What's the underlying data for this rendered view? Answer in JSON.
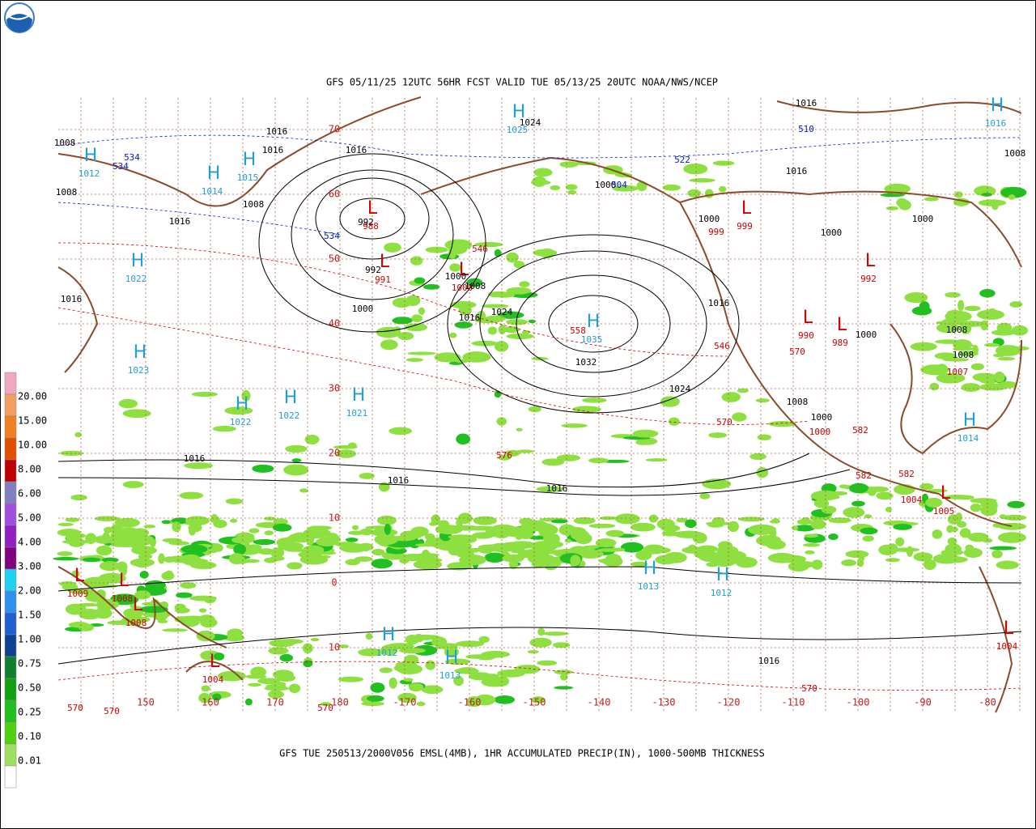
{
  "header": {
    "title": "GFS 05/11/25 12UTC 56HR FCST VALID TUE 05/13/25 20UTC NOAA/NWS/NCEP"
  },
  "footer": {
    "caption": "GFS TUE 250513/2000V056 EMSL(4MB), 1HR ACCUMULATED PRECIP(IN), 1000-500MB THICKNESS"
  },
  "legend": {
    "labels": [
      "20.00",
      "15.00",
      "10.00",
      "8.00",
      "6.00",
      "5.00",
      "4.00",
      "3.00",
      "2.00",
      "1.50",
      "1.00",
      "0.75",
      "0.50",
      "0.25",
      "0.10",
      "0.01"
    ],
    "colors": [
      "#f0a8c0",
      "#f0a060",
      "#f08020",
      "#e05000",
      "#c00000",
      "#8080c0",
      "#a050e0",
      "#9020c0",
      "#800080",
      "#20d0f0",
      "#3090f0",
      "#2060d0",
      "#104090",
      "#108030",
      "#10a010",
      "#20c020",
      "#50d010",
      "#a0e060",
      "#ffffff"
    ]
  },
  "map": {
    "lat_labels": [
      "70",
      "60",
      "50",
      "40",
      "30",
      "20",
      "10",
      "0",
      "10"
    ],
    "lon_labels": [
      "150",
      "160",
      "170",
      "180",
      "-170",
      "-160",
      "-150",
      "-140",
      "-130",
      "-120",
      "-110",
      "-100",
      "-90",
      "-80"
    ],
    "centers": [
      {
        "letter": "H",
        "value": "1012"
      },
      {
        "letter": "H",
        "value": "1014"
      },
      {
        "letter": "H",
        "value": "1015"
      },
      {
        "letter": "H",
        "value": "1025"
      },
      {
        "letter": "H",
        "value": "1022"
      },
      {
        "letter": "H",
        "value": "1023"
      },
      {
        "letter": "H",
        "value": "1035"
      },
      {
        "letter": "H",
        "value": "1022"
      },
      {
        "letter": "H",
        "value": "1022"
      },
      {
        "letter": "H",
        "value": "1021"
      },
      {
        "letter": "H",
        "value": "1014"
      },
      {
        "letter": "H",
        "value": "1013"
      },
      {
        "letter": "H",
        "value": "1012"
      },
      {
        "letter": "H",
        "value": "1012"
      },
      {
        "letter": "H",
        "value": "1013"
      },
      {
        "letter": "H",
        "value": "1016"
      },
      {
        "letter": "L",
        "value": "988"
      },
      {
        "letter": "L",
        "value": "991"
      },
      {
        "letter": "L",
        "value": "1000"
      },
      {
        "letter": "L",
        "value": "992"
      },
      {
        "letter": "L",
        "value": "989"
      },
      {
        "letter": "L",
        "value": "990"
      },
      {
        "letter": "L",
        "value": "999"
      },
      {
        "letter": "L",
        "value": "1009"
      },
      {
        "letter": "L",
        "value": "1008"
      },
      {
        "letter": "L",
        "value": "1008"
      },
      {
        "letter": "L",
        "value": "1004"
      },
      {
        "letter": "L",
        "value": "1005"
      },
      {
        "letter": "L",
        "value": "1004"
      }
    ],
    "labels": [
      {
        "text": "1016",
        "color": "black"
      },
      {
        "text": "1016",
        "color": "black"
      },
      {
        "text": "1016",
        "color": "black"
      },
      {
        "text": "1016",
        "color": "black"
      },
      {
        "text": "1008",
        "color": "black"
      },
      {
        "text": "1000",
        "color": "black"
      },
      {
        "text": "992",
        "color": "black"
      },
      {
        "text": "992",
        "color": "black"
      },
      {
        "text": "1000",
        "color": "black"
      },
      {
        "text": "1008",
        "color": "black"
      },
      {
        "text": "1016",
        "color": "black"
      },
      {
        "text": "1024",
        "color": "black"
      },
      {
        "text": "1032",
        "color": "black"
      },
      {
        "text": "1024",
        "color": "black"
      },
      {
        "text": "1016",
        "color": "black"
      },
      {
        "text": "1016",
        "color": "black"
      },
      {
        "text": "1016",
        "color": "black"
      },
      {
        "text": "1016",
        "color": "black"
      },
      {
        "text": "1016",
        "color": "black"
      },
      {
        "text": "1000",
        "color": "black"
      },
      {
        "text": "1000",
        "color": "black"
      },
      {
        "text": "1000",
        "color": "black"
      },
      {
        "text": "1000",
        "color": "black"
      },
      {
        "text": "1008",
        "color": "black"
      },
      {
        "text": "1008",
        "color": "black"
      },
      {
        "text": "1016",
        "color": "black"
      },
      {
        "text": "1016",
        "color": "black"
      },
      {
        "text": "1008",
        "color": "black"
      },
      {
        "text": "1000",
        "color": "black"
      },
      {
        "text": "1008",
        "color": "black"
      },
      {
        "text": "1024",
        "color": "black"
      },
      {
        "text": "1000",
        "color": "black"
      },
      {
        "text": "1016",
        "color": "black"
      },
      {
        "text": "1008",
        "color": "black"
      },
      {
        "text": "1008",
        "color": "black"
      },
      {
        "text": "558",
        "color": "red"
      },
      {
        "text": "546",
        "color": "red"
      },
      {
        "text": "546",
        "color": "red"
      },
      {
        "text": "570",
        "color": "red"
      },
      {
        "text": "576",
        "color": "red"
      },
      {
        "text": "570",
        "color": "red"
      },
      {
        "text": "582",
        "color": "red"
      },
      {
        "text": "582",
        "color": "red"
      },
      {
        "text": "582",
        "color": "red"
      },
      {
        "text": "999",
        "color": "red"
      },
      {
        "text": "1007",
        "color": "red"
      },
      {
        "text": "1000",
        "color": "red"
      },
      {
        "text": "1004",
        "color": "red"
      },
      {
        "text": "570",
        "color": "red"
      },
      {
        "text": "570",
        "color": "red"
      },
      {
        "text": "570",
        "color": "red"
      },
      {
        "text": "570",
        "color": "red"
      },
      {
        "text": "534",
        "color": "blue"
      },
      {
        "text": "534",
        "color": "blue"
      },
      {
        "text": "534",
        "color": "blue"
      },
      {
        "text": "510",
        "color": "blue"
      },
      {
        "text": "522",
        "color": "blue"
      },
      {
        "text": "504",
        "color": "blue"
      }
    ]
  }
}
